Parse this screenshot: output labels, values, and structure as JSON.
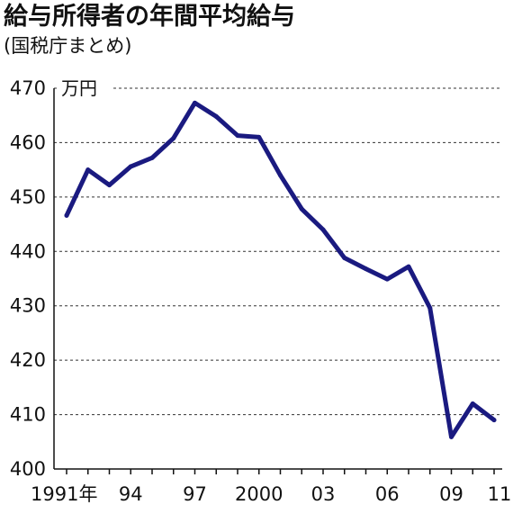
{
  "title": "給与所得者の年間平均給与",
  "subtitle": "(国税庁まとめ)",
  "chart_data": {
    "type": "line",
    "unit_label": "万円",
    "ylim": [
      400,
      470
    ],
    "y_ticks": [
      400,
      410,
      420,
      430,
      440,
      450,
      460,
      470
    ],
    "grid": "horizontal dashed",
    "x": [
      1991,
      1992,
      1993,
      1994,
      1995,
      1996,
      1997,
      1998,
      1999,
      2000,
      2001,
      2002,
      2003,
      2004,
      2005,
      2006,
      2007,
      2008,
      2009,
      2010,
      2011
    ],
    "x_tick_labels": [
      {
        "x": 1991,
        "label": "1991年"
      },
      {
        "x": 1994,
        "label": "94"
      },
      {
        "x": 1997,
        "label": "97"
      },
      {
        "x": 2000,
        "label": "2000"
      },
      {
        "x": 2003,
        "label": "03"
      },
      {
        "x": 2006,
        "label": "06"
      },
      {
        "x": 2009,
        "label": "09"
      },
      {
        "x": 2011,
        "label": "11"
      }
    ],
    "series": [
      {
        "values": [
          446.6,
          455.0,
          452.2,
          455.6,
          457.2,
          460.8,
          467.3,
          464.8,
          461.3,
          461.0,
          454.0,
          447.8,
          444.0,
          438.8,
          436.8,
          434.9,
          437.2,
          429.6,
          405.9,
          412.0,
          409.0
        ],
        "color": "#1a1a80"
      }
    ]
  }
}
